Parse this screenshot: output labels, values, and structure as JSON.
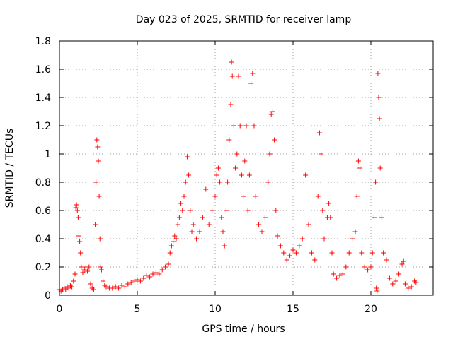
{
  "chart_data": {
    "type": "scatter",
    "title": "Day 023 of 2025, SRMTID for receiver lamp",
    "xlabel": "GPS time / hours",
    "ylabel": "SRMTID / TECUs",
    "xlim": [
      0,
      24
    ],
    "ylim": [
      0,
      1.8
    ],
    "xticks": [
      0,
      5,
      10,
      15,
      20
    ],
    "xtick_labels": [
      "0",
      "5",
      "10",
      "15",
      "20"
    ],
    "yticks": [
      0,
      0.2,
      0.4,
      0.6,
      0.8,
      1,
      1.2,
      1.4,
      1.6,
      1.8
    ],
    "ytick_labels": [
      "0",
      "0.2",
      "0.4",
      "0.6",
      "0.8",
      "1",
      "1.2",
      "1.4",
      "1.6",
      "1.8"
    ],
    "grid": true,
    "marker": "+",
    "color": "#ff0000",
    "series": [
      {
        "name": "SRMTID",
        "points": [
          [
            0.0,
            0.04
          ],
          [
            0.1,
            0.03
          ],
          [
            0.2,
            0.04
          ],
          [
            0.3,
            0.05
          ],
          [
            0.4,
            0.04
          ],
          [
            0.5,
            0.06
          ],
          [
            0.6,
            0.05
          ],
          [
            0.7,
            0.07
          ],
          [
            0.8,
            0.06
          ],
          [
            0.9,
            0.1
          ],
          [
            1.0,
            0.15
          ],
          [
            1.05,
            0.62
          ],
          [
            1.1,
            0.64
          ],
          [
            1.15,
            0.6
          ],
          [
            1.2,
            0.55
          ],
          [
            1.25,
            0.42
          ],
          [
            1.3,
            0.38
          ],
          [
            1.35,
            0.3
          ],
          [
            1.4,
            0.2
          ],
          [
            1.5,
            0.16
          ],
          [
            1.6,
            0.18
          ],
          [
            1.7,
            0.2
          ],
          [
            1.8,
            0.17
          ],
          [
            1.9,
            0.2
          ],
          [
            2.0,
            0.08
          ],
          [
            2.1,
            0.05
          ],
          [
            2.2,
            0.04
          ],
          [
            2.3,
            0.5
          ],
          [
            2.35,
            0.8
          ],
          [
            2.4,
            1.1
          ],
          [
            2.45,
            1.05
          ],
          [
            2.5,
            0.95
          ],
          [
            2.55,
            0.7
          ],
          [
            2.6,
            0.4
          ],
          [
            2.65,
            0.2
          ],
          [
            2.7,
            0.18
          ],
          [
            2.8,
            0.1
          ],
          [
            2.9,
            0.07
          ],
          [
            3.0,
            0.06
          ],
          [
            3.2,
            0.05
          ],
          [
            3.4,
            0.05
          ],
          [
            3.6,
            0.06
          ],
          [
            3.8,
            0.05
          ],
          [
            4.0,
            0.07
          ],
          [
            4.2,
            0.06
          ],
          [
            4.4,
            0.08
          ],
          [
            4.6,
            0.09
          ],
          [
            4.8,
            0.1
          ],
          [
            5.0,
            0.11
          ],
          [
            5.2,
            0.1
          ],
          [
            5.4,
            0.12
          ],
          [
            5.6,
            0.14
          ],
          [
            5.8,
            0.13
          ],
          [
            6.0,
            0.15
          ],
          [
            6.2,
            0.16
          ],
          [
            6.4,
            0.15
          ],
          [
            6.6,
            0.18
          ],
          [
            6.8,
            0.2
          ],
          [
            7.0,
            0.22
          ],
          [
            7.1,
            0.3
          ],
          [
            7.2,
            0.35
          ],
          [
            7.3,
            0.38
          ],
          [
            7.4,
            0.42
          ],
          [
            7.5,
            0.4
          ],
          [
            7.6,
            0.5
          ],
          [
            7.7,
            0.55
          ],
          [
            7.8,
            0.65
          ],
          [
            7.9,
            0.6
          ],
          [
            8.0,
            0.7
          ],
          [
            8.1,
            0.8
          ],
          [
            8.2,
            0.98
          ],
          [
            8.3,
            0.85
          ],
          [
            8.4,
            0.6
          ],
          [
            8.5,
            0.45
          ],
          [
            8.6,
            0.5
          ],
          [
            8.8,
            0.4
          ],
          [
            9.0,
            0.45
          ],
          [
            9.2,
            0.55
          ],
          [
            9.4,
            0.75
          ],
          [
            9.6,
            0.5
          ],
          [
            9.8,
            0.6
          ],
          [
            10.0,
            0.7
          ],
          [
            10.1,
            0.85
          ],
          [
            10.2,
            0.9
          ],
          [
            10.3,
            0.8
          ],
          [
            10.4,
            0.55
          ],
          [
            10.5,
            0.45
          ],
          [
            10.6,
            0.35
          ],
          [
            10.7,
            0.6
          ],
          [
            10.8,
            0.8
          ],
          [
            10.9,
            1.1
          ],
          [
            11.0,
            1.35
          ],
          [
            11.05,
            1.65
          ],
          [
            11.1,
            1.55
          ],
          [
            11.2,
            1.2
          ],
          [
            11.3,
            0.9
          ],
          [
            11.4,
            1.0
          ],
          [
            11.5,
            1.55
          ],
          [
            11.6,
            1.2
          ],
          [
            11.7,
            0.85
          ],
          [
            11.8,
            0.7
          ],
          [
            11.9,
            0.95
          ],
          [
            12.0,
            1.2
          ],
          [
            12.1,
            0.6
          ],
          [
            12.2,
            0.85
          ],
          [
            12.3,
            1.5
          ],
          [
            12.4,
            1.57
          ],
          [
            12.5,
            1.2
          ],
          [
            12.6,
            0.7
          ],
          [
            12.8,
            0.5
          ],
          [
            13.0,
            0.45
          ],
          [
            13.2,
            0.55
          ],
          [
            13.4,
            0.8
          ],
          [
            13.5,
            1.0
          ],
          [
            13.6,
            1.28
          ],
          [
            13.7,
            1.3
          ],
          [
            13.8,
            1.1
          ],
          [
            13.9,
            0.6
          ],
          [
            14.0,
            0.42
          ],
          [
            14.2,
            0.35
          ],
          [
            14.4,
            0.3
          ],
          [
            14.6,
            0.25
          ],
          [
            14.8,
            0.28
          ],
          [
            15.0,
            0.32
          ],
          [
            15.2,
            0.3
          ],
          [
            15.4,
            0.35
          ],
          [
            15.6,
            0.4
          ],
          [
            15.8,
            0.85
          ],
          [
            16.0,
            0.5
          ],
          [
            16.2,
            0.3
          ],
          [
            16.4,
            0.25
          ],
          [
            16.6,
            0.7
          ],
          [
            16.7,
            1.15
          ],
          [
            16.8,
            1.0
          ],
          [
            16.9,
            0.6
          ],
          [
            17.0,
            0.4
          ],
          [
            17.2,
            0.55
          ],
          [
            17.3,
            0.65
          ],
          [
            17.4,
            0.55
          ],
          [
            17.5,
            0.3
          ],
          [
            17.6,
            0.15
          ],
          [
            17.8,
            0.12
          ],
          [
            18.0,
            0.14
          ],
          [
            18.2,
            0.15
          ],
          [
            18.4,
            0.2
          ],
          [
            18.6,
            0.3
          ],
          [
            18.8,
            0.4
          ],
          [
            19.0,
            0.45
          ],
          [
            19.1,
            0.7
          ],
          [
            19.2,
            0.95
          ],
          [
            19.3,
            0.9
          ],
          [
            19.4,
            0.3
          ],
          [
            19.6,
            0.2
          ],
          [
            19.8,
            0.18
          ],
          [
            20.0,
            0.2
          ],
          [
            20.1,
            0.3
          ],
          [
            20.2,
            0.55
          ],
          [
            20.3,
            0.8
          ],
          [
            20.35,
            0.05
          ],
          [
            20.4,
            0.03
          ],
          [
            20.45,
            1.57
          ],
          [
            20.5,
            1.4
          ],
          [
            20.55,
            1.25
          ],
          [
            20.6,
            0.9
          ],
          [
            20.7,
            0.55
          ],
          [
            20.8,
            0.3
          ],
          [
            21.0,
            0.25
          ],
          [
            21.2,
            0.12
          ],
          [
            21.4,
            0.08
          ],
          [
            21.6,
            0.1
          ],
          [
            21.8,
            0.15
          ],
          [
            22.0,
            0.22
          ],
          [
            22.1,
            0.24
          ],
          [
            22.2,
            0.08
          ],
          [
            22.4,
            0.05
          ],
          [
            22.6,
            0.06
          ],
          [
            22.8,
            0.1
          ],
          [
            22.9,
            0.09
          ]
        ]
      }
    ]
  }
}
